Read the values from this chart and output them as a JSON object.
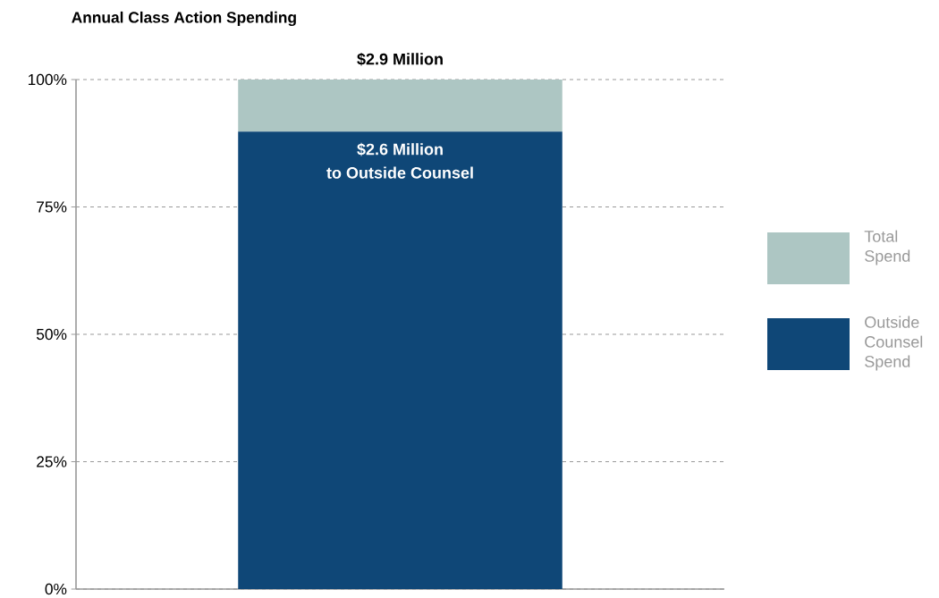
{
  "chart_data": {
    "type": "bar",
    "title": "Annual Class Action Spending",
    "stacked": true,
    "categories": [
      null
    ],
    "series": [
      {
        "name": "Outside Counsel Spend",
        "color": "#0f4777",
        "values": [
          89.8
        ]
      },
      {
        "name": "Total Spend",
        "color": "#adc6c3",
        "values": [
          10.2
        ]
      }
    ],
    "ylim": [
      0,
      100
    ],
    "yticks": [
      {
        "value": 0,
        "label": "0%"
      },
      {
        "value": 25,
        "label": "25%"
      },
      {
        "value": 50,
        "label": "50%"
      },
      {
        "value": 75,
        "label": "75%"
      },
      {
        "value": 100,
        "label": "100%"
      }
    ],
    "grid": "y",
    "legend": "right",
    "annotations": [
      {
        "text": "$2.9 Million",
        "y": 100
      },
      {
        "text": "$2.6 Million",
        "y": 89.8
      },
      "to Outside Counsel"
    ]
  }
}
